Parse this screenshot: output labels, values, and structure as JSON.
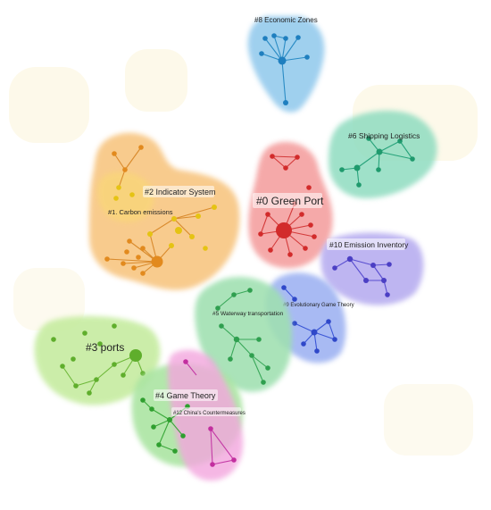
{
  "clusters": [
    {
      "id": "c8",
      "label": "#8 Economic Zones",
      "fill": "#8fc8ec",
      "edge": "#2a8bc4",
      "node": "#1f7fbf"
    },
    {
      "id": "c6",
      "label": "#6 Shipping Logistics",
      "fill": "#8fdcc0",
      "edge": "#27a37b",
      "node": "#1f9a6d"
    },
    {
      "id": "c0",
      "label": "#0 Green Port",
      "fill": "#f4a0a0",
      "edge": "#d33a3a",
      "node": "#d22b2b"
    },
    {
      "id": "c2",
      "label": "#2 Indicator System",
      "fill": "#f7c27a",
      "edge": "#d98a2c",
      "node": "#e28a1e"
    },
    {
      "id": "c1",
      "label": "#1. Carbon emissions",
      "fill": "#f9d57a",
      "edge": "#d9a72c",
      "node": "#e5c313"
    },
    {
      "id": "c10",
      "label": "#10 Emission Inventory",
      "fill": "#b8aef0",
      "edge": "#5a4fd0",
      "node": "#4b3fc4"
    },
    {
      "id": "c9",
      "label": "#9 Evolutionary Game Theory",
      "fill": "#9fb3f2",
      "edge": "#3b56d6",
      "node": "#2f48c9"
    },
    {
      "id": "c5",
      "label": "#5 Waterway transportation",
      "fill": "#9fe0b0",
      "edge": "#3aa85a",
      "node": "#2f9f4f"
    },
    {
      "id": "c3",
      "label": "#3 ports",
      "fill": "#c6eca0",
      "edge": "#6fb83a",
      "node": "#5fae2c"
    },
    {
      "id": "c4",
      "label": "#4 Game Theory",
      "fill": "#a9e4a0",
      "edge": "#3aa83a",
      "node": "#2f9f2f"
    },
    {
      "id": "c12",
      "label": "#12 China's Countermeasures",
      "fill": "#f3a6de",
      "edge": "#c43aa6",
      "node": "#c22f9f"
    }
  ]
}
